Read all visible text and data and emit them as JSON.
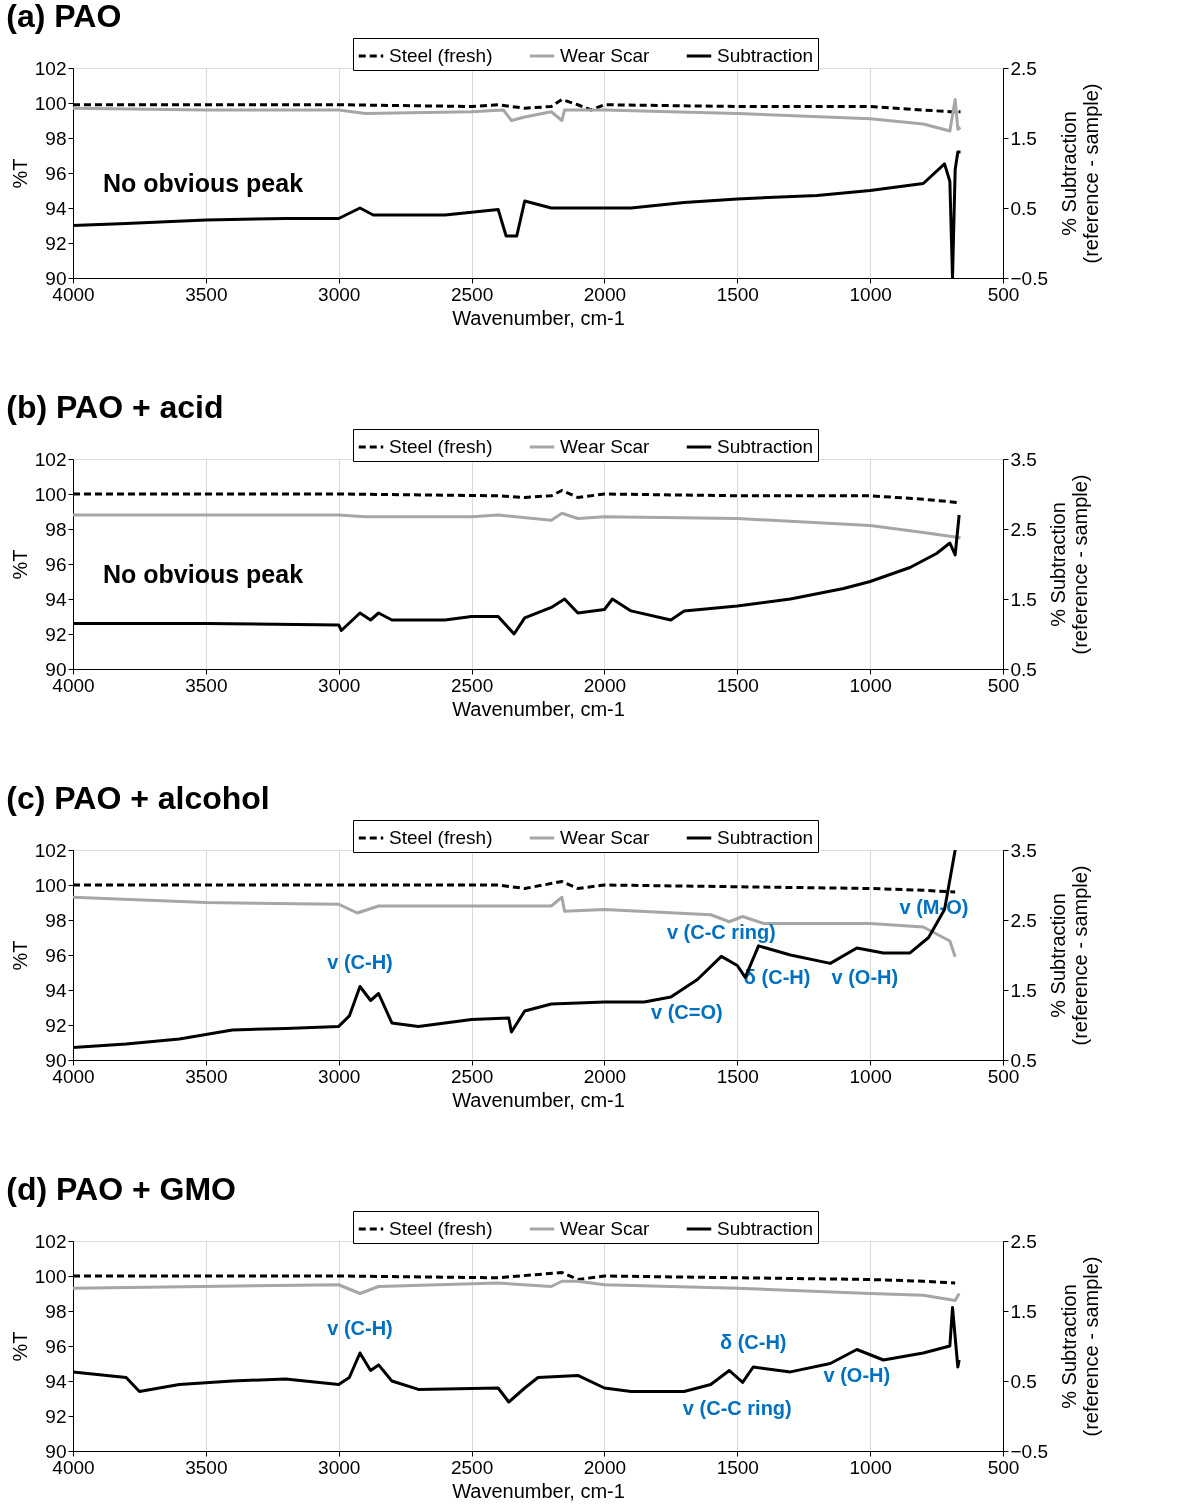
{
  "chart_data": [
    {
      "type": "line",
      "title": "(a) PAO",
      "xlabel": "Wavenumber, cm-1",
      "ylabel": "%T",
      "y2label": "% Subtraction\n(reference - sample)",
      "xlim": [
        4000,
        500
      ],
      "xticks": [
        4000,
        3500,
        3000,
        2500,
        2000,
        1500,
        1000,
        500
      ],
      "ylim": [
        90,
        102
      ],
      "yticks": [
        90,
        92,
        94,
        96,
        98,
        100,
        102
      ],
      "y2lim": [
        -0.5,
        2.5
      ],
      "y2ticks": [
        -0.5,
        0.5,
        1.5,
        2.5
      ],
      "grid": "x",
      "legend": "top right",
      "annotations": [
        "No obvious peak"
      ],
      "series": [
        {
          "name": "Steel (fresh)",
          "color": "#000000",
          "line_style": "dashed",
          "x": [
            4000,
            3500,
            3000,
            2500,
            2400,
            2300,
            2200,
            2160,
            2100,
            2050,
            2000,
            1500,
            1000,
            800,
            700,
            660
          ],
          "values": [
            99.9,
            99.9,
            99.9,
            99.8,
            99.9,
            99.7,
            99.8,
            100.2,
            99.9,
            99.6,
            99.9,
            99.8,
            99.8,
            99.6,
            99.5,
            99.5
          ]
        },
        {
          "name": "Wear Scar",
          "color": "#a6a6a6",
          "line_style": "solid",
          "x": [
            4000,
            3500,
            3000,
            2900,
            2500,
            2380,
            2350,
            2300,
            2200,
            2160,
            2150,
            2000,
            1500,
            1000,
            800,
            700,
            680,
            670,
            660
          ],
          "values": [
            99.7,
            99.6,
            99.6,
            99.4,
            99.5,
            99.6,
            99.0,
            99.2,
            99.5,
            99.0,
            99.6,
            99.6,
            99.4,
            99.1,
            98.8,
            98.4,
            100.2,
            98.5,
            98.6
          ]
        },
        {
          "name": "Subtraction",
          "color": "#000000",
          "line_style": "solid",
          "axis": "y2",
          "x": [
            4000,
            3800,
            3500,
            3200,
            3000,
            2920,
            2870,
            2800,
            2600,
            2400,
            2370,
            2330,
            2300,
            2200,
            2000,
            1900,
            1700,
            1500,
            1200,
            1000,
            800,
            720,
            700,
            690,
            680,
            670,
            660
          ],
          "values": [
            0.25,
            0.28,
            0.33,
            0.35,
            0.35,
            0.5,
            0.4,
            0.4,
            0.4,
            0.48,
            0.1,
            0.1,
            0.6,
            0.5,
            0.5,
            0.5,
            0.58,
            0.63,
            0.68,
            0.75,
            0.85,
            1.13,
            0.88,
            -0.5,
            1.05,
            1.3,
            1.3
          ]
        }
      ]
    },
    {
      "type": "line",
      "title": "(b) PAO + acid",
      "xlabel": "Wavenumber, cm-1",
      "ylabel": "%T",
      "y2label": "% Subtraction\n(reference - sample)",
      "xlim": [
        4000,
        500
      ],
      "xticks": [
        4000,
        3500,
        3000,
        2500,
        2000,
        1500,
        1000,
        500
      ],
      "ylim": [
        90,
        102
      ],
      "yticks": [
        90,
        92,
        94,
        96,
        98,
        100,
        102
      ],
      "y2lim": [
        0.5,
        3.5
      ],
      "y2ticks": [
        0.5,
        1.5,
        2.5,
        3.5
      ],
      "grid": "x",
      "legend": "top right",
      "annotations": [
        "No obvious peak"
      ],
      "series": [
        {
          "name": "Steel (fresh)",
          "color": "#000000",
          "line_style": "dashed",
          "x": [
            4000,
            3000,
            2400,
            2300,
            2200,
            2160,
            2100,
            2000,
            1500,
            1000,
            800,
            660
          ],
          "values": [
            100,
            100,
            99.9,
            99.8,
            99.9,
            100.2,
            99.8,
            100,
            99.9,
            99.9,
            99.7,
            99.5
          ]
        },
        {
          "name": "Wear Scar",
          "color": "#a6a6a6",
          "line_style": "solid",
          "x": [
            4000,
            3000,
            2900,
            2500,
            2400,
            2200,
            2160,
            2100,
            2000,
            1500,
            1000,
            800,
            660
          ],
          "values": [
            98.8,
            98.8,
            98.7,
            98.7,
            98.8,
            98.5,
            98.9,
            98.6,
            98.7,
            98.6,
            98.2,
            97.8,
            97.5
          ]
        },
        {
          "name": "Subtraction",
          "color": "#000000",
          "line_style": "solid",
          "axis": "y2",
          "x": [
            4000,
            3500,
            3000,
            2990,
            2920,
            2880,
            2850,
            2800,
            2600,
            2500,
            2400,
            2340,
            2300,
            2200,
            2150,
            2100,
            2000,
            1970,
            1900,
            1750,
            1700,
            1500,
            1300,
            1100,
            1000,
            850,
            750,
            700,
            680,
            665
          ],
          "values": [
            1.15,
            1.15,
            1.13,
            1.05,
            1.3,
            1.2,
            1.3,
            1.2,
            1.2,
            1.25,
            1.25,
            1.0,
            1.23,
            1.38,
            1.5,
            1.3,
            1.35,
            1.5,
            1.33,
            1.2,
            1.33,
            1.4,
            1.5,
            1.65,
            1.75,
            1.95,
            2.15,
            2.3,
            2.13,
            2.7
          ]
        }
      ]
    },
    {
      "type": "line",
      "title": "(c) PAO + alcohol",
      "xlabel": "Wavenumber, cm-1",
      "ylabel": "%T",
      "y2label": "% Subtraction\n(reference - sample)",
      "xlim": [
        4000,
        500
      ],
      "xticks": [
        4000,
        3500,
        3000,
        2500,
        2000,
        1500,
        1000,
        500
      ],
      "ylim": [
        90,
        102
      ],
      "yticks": [
        90,
        92,
        94,
        96,
        98,
        100,
        102
      ],
      "y2lim": [
        0.5,
        3.5
      ],
      "y2ticks": [
        0.5,
        1.5,
        2.5,
        3.5
      ],
      "grid": "x",
      "legend": "top right",
      "annotations": [
        {
          "text": "v (C-H)",
          "x": 2920,
          "y": 94.2
        },
        {
          "text": "v (C=O)",
          "x": 1690,
          "y": 94.2
        },
        {
          "text": "v (C-C ring)",
          "x": 1560,
          "y": 95.9
        },
        {
          "text": "δ (C-H)",
          "x": 1350,
          "y": 96.2
        },
        {
          "text": "v (M-O)",
          "x": 760,
          "y": 97.3
        },
        {
          "text": "v (O-H)",
          "x": 1020,
          "y": 96.2
        }
      ],
      "series": [
        {
          "name": "Steel (fresh)",
          "color": "#000000",
          "line_style": "dashed",
          "x": [
            4000,
            3000,
            2400,
            2300,
            2160,
            2100,
            2000,
            1500,
            1000,
            800,
            680
          ],
          "values": [
            100,
            100,
            100,
            99.8,
            100.2,
            99.8,
            100,
            99.9,
            99.8,
            99.7,
            99.6
          ]
        },
        {
          "name": "Wear Scar",
          "color": "#a6a6a6",
          "line_style": "solid",
          "x": [
            4000,
            3500,
            3000,
            2930,
            2850,
            2500,
            2200,
            2160,
            2150,
            2000,
            1600,
            1530,
            1480,
            1400,
            1200,
            1000,
            800,
            700,
            680
          ],
          "values": [
            99.3,
            99.0,
            98.9,
            98.4,
            98.8,
            98.8,
            98.8,
            99.3,
            98.5,
            98.6,
            98.3,
            97.9,
            98.2,
            97.8,
            97.8,
            97.8,
            97.6,
            96.8,
            95.9
          ]
        },
        {
          "name": "Subtraction",
          "color": "#000000",
          "line_style": "solid",
          "axis": "y2",
          "x": [
            4000,
            3800,
            3600,
            3400,
            3200,
            3000,
            2960,
            2920,
            2880,
            2850,
            2800,
            2700,
            2500,
            2360,
            2350,
            2300,
            2200,
            2000,
            1850,
            1750,
            1650,
            1560,
            1500,
            1470,
            1420,
            1300,
            1150,
            1050,
            950,
            850,
            780,
            720,
            680
          ],
          "values": [
            0.68,
            0.73,
            0.8,
            0.93,
            0.95,
            0.98,
            1.13,
            1.55,
            1.35,
            1.45,
            1.03,
            0.98,
            1.08,
            1.1,
            0.9,
            1.2,
            1.3,
            1.33,
            1.33,
            1.4,
            1.65,
            1.98,
            1.85,
            1.68,
            2.13,
            2.0,
            1.88,
            2.1,
            2.03,
            2.03,
            2.25,
            2.65,
            3.5
          ]
        }
      ]
    },
    {
      "type": "line",
      "title": "(d) PAO + GMO",
      "xlabel": "Wavenumber, cm-1",
      "ylabel": "%T",
      "y2label": "% Subtraction\n(reference - sample)",
      "xlim": [
        4000,
        500
      ],
      "xticks": [
        4000,
        3500,
        3000,
        2500,
        2000,
        1500,
        1000,
        500
      ],
      "ylim": [
        90,
        102
      ],
      "yticks": [
        90,
        92,
        94,
        96,
        98,
        100,
        102
      ],
      "y2lim": [
        -0.5,
        2.5
      ],
      "y2ticks": [
        -0.5,
        0.5,
        1.5,
        2.5
      ],
      "grid": "x",
      "legend": "top right",
      "annotations": [
        {
          "text": "v (C-H)",
          "x": 2920,
          "y": 95.6
        },
        {
          "text": "v (C-C ring)",
          "x": 1500,
          "y": 93.9
        },
        {
          "text": "δ (C-H)",
          "x": 1440,
          "y": 94.8
        },
        {
          "text": "v (O-H)",
          "x": 1050,
          "y": 95.8
        }
      ],
      "series": [
        {
          "name": "Steel (fresh)",
          "color": "#000000",
          "line_style": "dashed",
          "x": [
            4000,
            3000,
            2400,
            2160,
            2100,
            2000,
            1500,
            1000,
            800,
            680
          ],
          "values": [
            100,
            100,
            99.9,
            100.2,
            99.8,
            100,
            99.9,
            99.8,
            99.7,
            99.6
          ]
        },
        {
          "name": "Wear Scar",
          "color": "#a6a6a6",
          "line_style": "solid",
          "x": [
            4000,
            3000,
            2920,
            2850,
            2400,
            2200,
            2160,
            2100,
            2000,
            1500,
            1000,
            800,
            680,
            665
          ],
          "values": [
            99.3,
            99.5,
            99.0,
            99.4,
            99.6,
            99.4,
            99.7,
            99.7,
            99.5,
            99.3,
            99.0,
            98.9,
            98.6,
            99.0
          ]
        },
        {
          "name": "Subtraction",
          "color": "#000000",
          "line_style": "solid",
          "axis": "y2",
          "x": [
            4000,
            3800,
            3750,
            3600,
            3400,
            3200,
            3000,
            2960,
            2920,
            2880,
            2850,
            2800,
            2700,
            2400,
            2360,
            2300,
            2250,
            2100,
            2000,
            1900,
            1700,
            1600,
            1530,
            1480,
            1440,
            1300,
            1150,
            1050,
            950,
            800,
            700,
            690,
            670,
            665
          ],
          "values": [
            0.63,
            0.55,
            0.35,
            0.45,
            0.5,
            0.53,
            0.45,
            0.55,
            0.9,
            0.65,
            0.73,
            0.5,
            0.38,
            0.4,
            0.2,
            0.4,
            0.55,
            0.58,
            0.4,
            0.35,
            0.35,
            0.45,
            0.65,
            0.48,
            0.7,
            0.63,
            0.75,
            0.95,
            0.8,
            0.9,
            1.0,
            1.55,
            0.7,
            0.8
          ]
        }
      ]
    }
  ]
}
